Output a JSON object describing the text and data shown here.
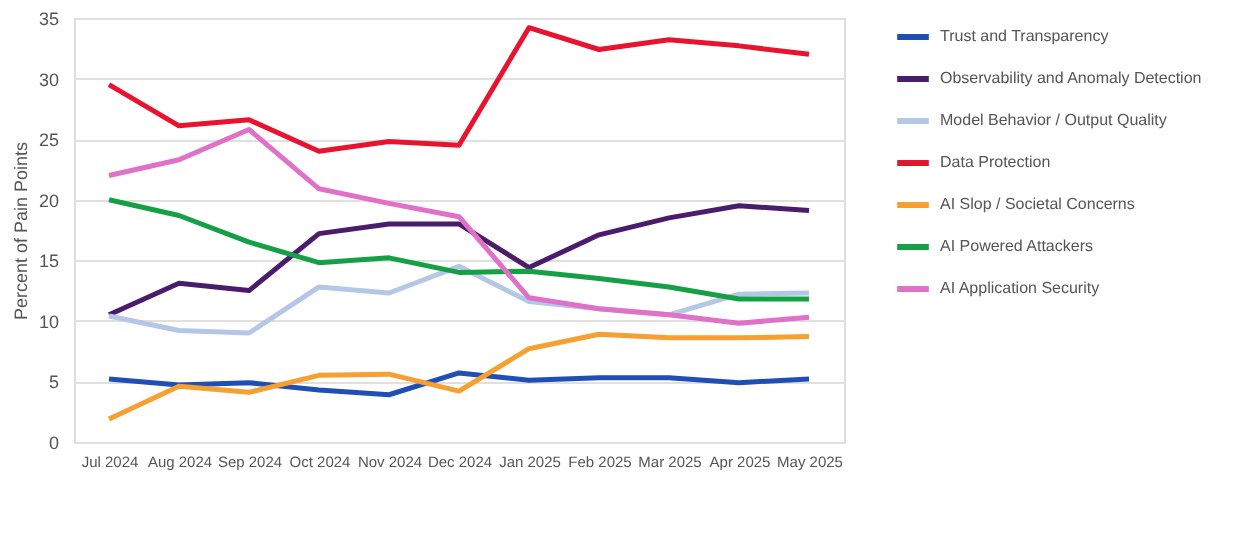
{
  "chart_data": {
    "type": "line",
    "ylabel": "Percent of Pain Points",
    "categories": [
      "Jul 2024",
      "Aug 2024",
      "Sep 2024",
      "Oct 2024",
      "Nov 2024",
      "Dec 2024",
      "Jan 2025",
      "Feb 2025",
      "Mar 2025",
      "Apr 2025",
      "May 2025"
    ],
    "series": [
      {
        "name": "Trust and Transparency",
        "color": "#1f4fb4",
        "values": [
          5.2,
          4.7,
          4.9,
          4.3,
          3.9,
          5.7,
          5.1,
          5.3,
          5.3,
          4.9,
          5.2
        ]
      },
      {
        "name": "Observability and Anomaly Detection",
        "color": "#4b1c6b",
        "values": [
          10.5,
          13.1,
          12.5,
          17.2,
          18.0,
          18.0,
          14.4,
          17.1,
          18.5,
          19.5,
          19.1
        ]
      },
      {
        "name": "Model Behavior / Output Quality",
        "color": "#b4c7e7",
        "values": [
          10.4,
          9.2,
          9.0,
          12.8,
          12.3,
          14.5,
          11.6,
          11.0,
          10.5,
          12.2,
          12.3
        ]
      },
      {
        "name": "Data Protection",
        "color": "#e8132f",
        "values": [
          29.5,
          26.1,
          26.6,
          24.0,
          24.8,
          24.5,
          34.2,
          32.4,
          33.2,
          32.7,
          32.0
        ]
      },
      {
        "name": "AI Slop /  Societal Concerns",
        "color": "#f5a030",
        "values": [
          1.9,
          4.6,
          4.1,
          5.5,
          5.6,
          4.2,
          7.7,
          8.9,
          8.6,
          8.6,
          8.7
        ]
      },
      {
        "name": "AI Powered Attackers",
        "color": "#16a045",
        "values": [
          20.0,
          18.7,
          16.5,
          14.8,
          15.2,
          14.0,
          14.1,
          13.5,
          12.8,
          11.8,
          11.8
        ]
      },
      {
        "name": "AI Application Security",
        "color": "#e070c8",
        "values": [
          22.0,
          23.3,
          25.8,
          20.9,
          19.7,
          18.6,
          11.9,
          11.0,
          10.5,
          9.8,
          10.3
        ]
      }
    ],
    "ylim": [
      0,
      35
    ],
    "yticks": [
      0,
      5,
      10,
      15,
      20,
      25,
      30,
      35
    ],
    "grid": "y",
    "legend": "right",
    "marker": "none",
    "line_style": "solid"
  }
}
